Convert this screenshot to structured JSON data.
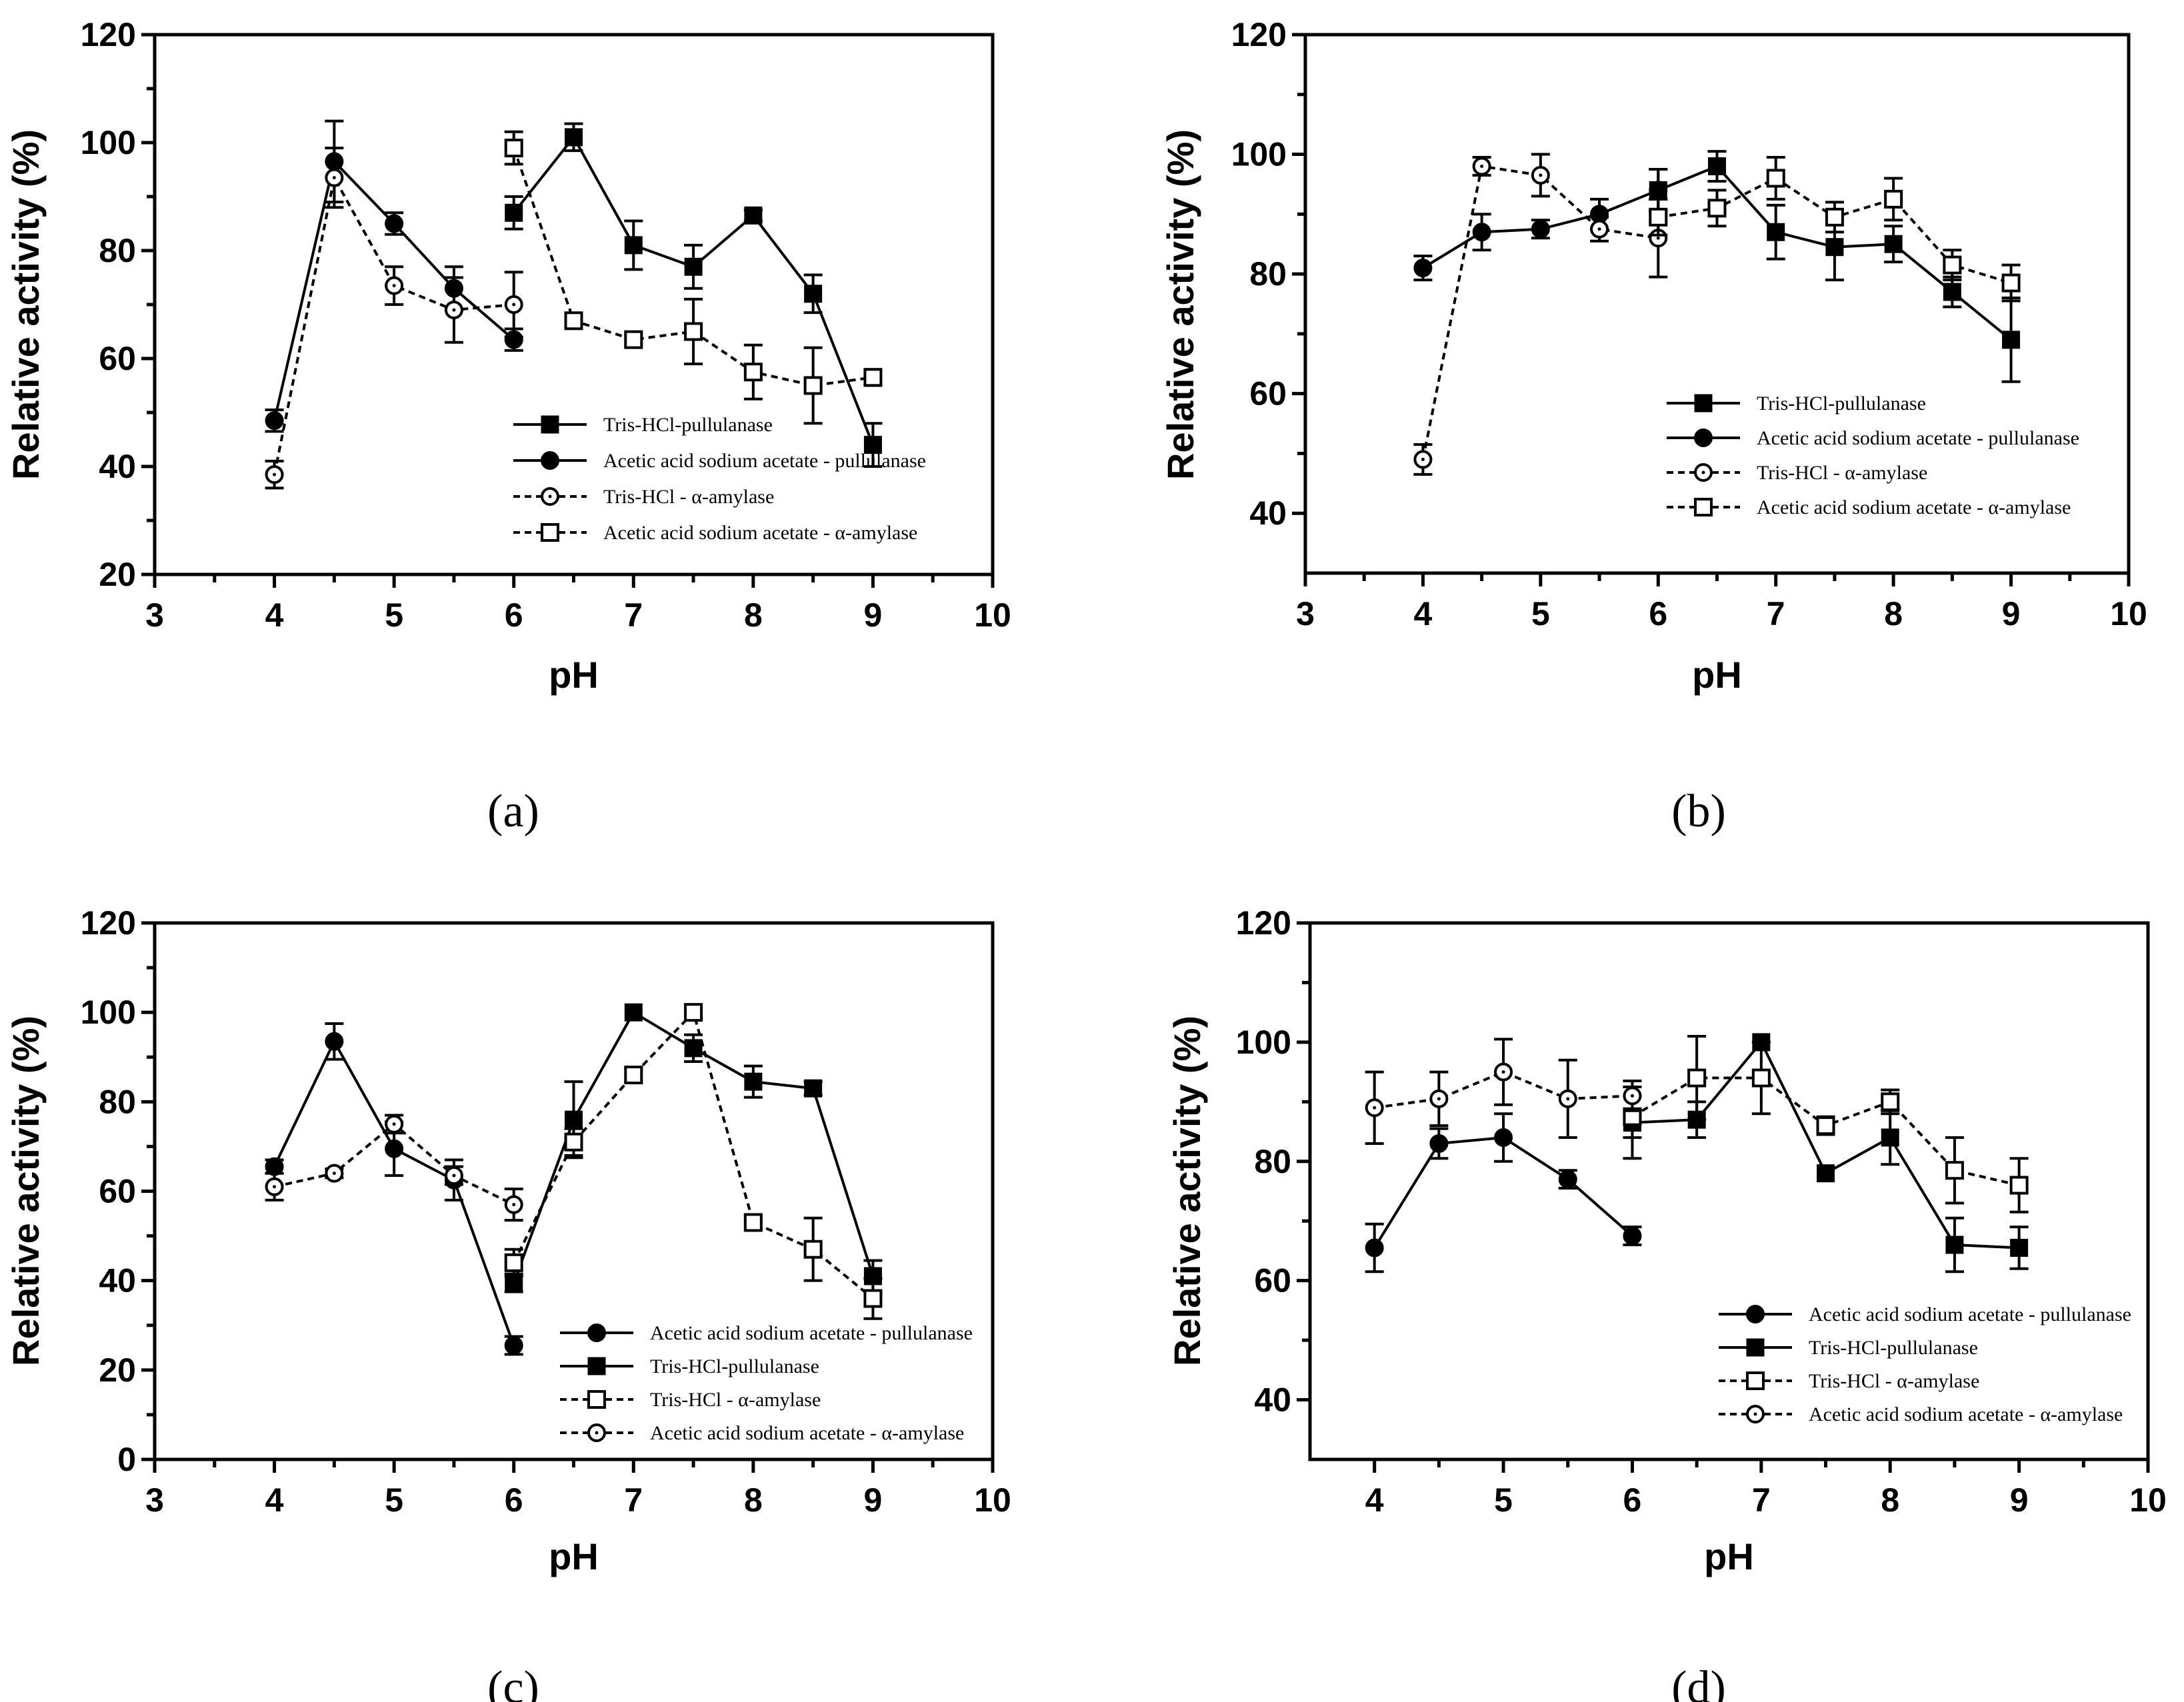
{
  "chart_data": [
    {
      "panel_label": "(a)",
      "type": "line",
      "xlabel": "pH",
      "ylabel": "Relative activity (%)",
      "xlim": [
        3,
        10
      ],
      "ylim": [
        20,
        120
      ],
      "xticks": [
        3,
        4,
        5,
        6,
        7,
        8,
        9,
        10
      ],
      "yticks": [
        20,
        40,
        60,
        80,
        100,
        120
      ],
      "legend_position": "bottom-right",
      "series": [
        {
          "name": "Tris-HCl-pullulanase",
          "marker": "square-filled",
          "dashed": false,
          "x": [
            6,
            6.5,
            7,
            7.5,
            8,
            8.5,
            9
          ],
          "y": [
            87,
            101,
            81,
            77,
            86.5,
            72,
            44
          ],
          "err": [
            3,
            2.5,
            4.5,
            4,
            1,
            3.5,
            4
          ]
        },
        {
          "name": "Acetic acid sodium acetate - pullulanase",
          "marker": "circle-filled",
          "dashed": false,
          "x": [
            4,
            4.5,
            5,
            5.5,
            6
          ],
          "y": [
            48.5,
            96.5,
            85,
            73,
            63.5
          ],
          "err": [
            2,
            7.5,
            2,
            4,
            2
          ]
        },
        {
          "name": "Tris-HCl - α-amylase",
          "marker": "circle-open",
          "dashed": true,
          "x": [
            4,
            4.5,
            5,
            5.5,
            6
          ],
          "y": [
            38.5,
            93.5,
            73.5,
            69,
            70
          ],
          "err": [
            2.5,
            5.5,
            3.5,
            6,
            6
          ]
        },
        {
          "name": "Acetic acid sodium acetate - α-amylase",
          "marker": "square-open",
          "dashed": true,
          "x": [
            6,
            6.5,
            7,
            7.5,
            8,
            8.5,
            9
          ],
          "y": [
            99,
            67,
            63.5,
            65,
            57.5,
            55,
            56.5
          ],
          "err": [
            3,
            1,
            1,
            6,
            5,
            7,
            1.5
          ]
        }
      ]
    },
    {
      "panel_label": "(b)",
      "type": "line",
      "xlabel": "pH",
      "ylabel": "Relative activity (%)",
      "xlim": [
        3,
        10
      ],
      "ylim": [
        30,
        120
      ],
      "xticks": [
        3,
        4,
        5,
        6,
        7,
        8,
        9,
        10
      ],
      "yticks": [
        40,
        60,
        80,
        100,
        120
      ],
      "legend_position": "bottom-right",
      "series": [
        {
          "name": "Tris-HCl-pullulanase",
          "marker": "square-filled",
          "dashed": false,
          "x": [
            6,
            6.5,
            7,
            7.5,
            8,
            8.5,
            9
          ],
          "y": [
            94,
            98,
            87,
            84.5,
            85,
            77,
            69
          ],
          "err": [
            3.5,
            2.5,
            4.5,
            5.5,
            3,
            2.5,
            7
          ]
        },
        {
          "name": "Acetic acid sodium acetate - pullulanase",
          "marker": "circle-filled",
          "dashed": false,
          "x": [
            4,
            4.5,
            5,
            5.5,
            6
          ],
          "y": [
            81,
            87,
            87.5,
            90,
            94
          ],
          "err": [
            2,
            3,
            1.5,
            2.5,
            3.5
          ]
        },
        {
          "name": "Tris-HCl - α-amylase",
          "marker": "circle-open",
          "dashed": true,
          "x": [
            4,
            4.5,
            5,
            5.5,
            6
          ],
          "y": [
            49,
            98,
            96.5,
            87.5,
            86
          ],
          "err": [
            2.5,
            1.5,
            3.5,
            2,
            6.5
          ]
        },
        {
          "name": "Acetic acid sodium acetate - α-amylase",
          "marker": "square-open",
          "dashed": true,
          "x": [
            6,
            6.5,
            7,
            7.5,
            8,
            8.5,
            9
          ],
          "y": [
            89.5,
            91,
            96,
            89.5,
            92.5,
            81.5,
            78.5
          ],
          "err": [
            3,
            3,
            3.5,
            2.5,
            3.5,
            2.5,
            3
          ]
        }
      ]
    },
    {
      "panel_label": "(c)",
      "type": "line",
      "xlabel": "pH",
      "ylabel": "Relative activity (%)",
      "xlim": [
        3,
        10
      ],
      "ylim": [
        0,
        120
      ],
      "xticks": [
        3,
        4,
        5,
        6,
        7,
        8,
        9,
        10
      ],
      "yticks": [
        0,
        20,
        40,
        60,
        80,
        100,
        120
      ],
      "legend_position": "bottom-right",
      "series": [
        {
          "name": "Acetic acid sodium acetate - pullulanase",
          "marker": "circle-filled",
          "dashed": false,
          "x": [
            4,
            4.5,
            5,
            5.5,
            6
          ],
          "y": [
            65.5,
            93.5,
            69.5,
            62.5,
            25.5
          ],
          "err": [
            1.5,
            4,
            6,
            4.5,
            2
          ]
        },
        {
          "name": "Tris-HCl-pullulanase",
          "marker": "square-filled",
          "dashed": false,
          "x": [
            6,
            6.5,
            7,
            7.5,
            8,
            8.5,
            9
          ],
          "y": [
            39.5,
            76,
            100,
            92,
            84.5,
            83,
            41
          ],
          "err": [
            2,
            8.5,
            0.5,
            3,
            3.5,
            1.5,
            3.5
          ]
        },
        {
          "name": "Tris-HCl - α-amylase",
          "marker": "square-open",
          "dashed": true,
          "x": [
            6,
            6.5,
            7,
            7.5,
            8,
            8.5,
            9
          ],
          "y": [
            44,
            71,
            86,
            100,
            53,
            47,
            36
          ],
          "err": [
            3,
            3,
            1.5,
            1,
            1.5,
            7,
            4.5
          ]
        },
        {
          "name": "Acetic acid sodium acetate - α-amylase",
          "marker": "circle-open",
          "dashed": true,
          "x": [
            4,
            4.5,
            5,
            5.5,
            6
          ],
          "y": [
            61,
            64,
            75,
            63.5,
            57
          ],
          "err": [
            3,
            1,
            2,
            2,
            3.5
          ]
        }
      ]
    },
    {
      "panel_label": "(d)",
      "type": "line",
      "xlabel": "pH",
      "ylabel": "Relative activity (%)",
      "xlim": [
        3.5,
        10
      ],
      "ylim": [
        30,
        120
      ],
      "xticks": [
        4,
        5,
        6,
        7,
        8,
        9,
        10
      ],
      "yticks": [
        40,
        60,
        80,
        100,
        120
      ],
      "legend_position": "bottom-right",
      "series": [
        {
          "name": "Acetic acid sodium acetate - pullulanase",
          "marker": "circle-filled",
          "dashed": false,
          "x": [
            4,
            4.5,
            5,
            5.5,
            6
          ],
          "y": [
            65.5,
            83,
            84,
            77,
            67.5
          ],
          "err": [
            4,
            2.5,
            4,
            1.5,
            1.5
          ]
        },
        {
          "name": "Tris-HCl-pullulanase",
          "marker": "square-filled",
          "dashed": false,
          "x": [
            6,
            6.5,
            7,
            7.5,
            8,
            8.5,
            9
          ],
          "y": [
            86.5,
            87,
            100,
            78,
            84,
            66,
            65.5
          ],
          "err": [
            6,
            3,
            0.5,
            0.5,
            4.5,
            4.5,
            3.5
          ]
        },
        {
          "name": "Tris-HCl - α-amylase",
          "marker": "square-open",
          "dashed": true,
          "x": [
            6,
            6.5,
            7,
            7.5,
            8,
            8.5,
            9
          ],
          "y": [
            87.5,
            94,
            94,
            86,
            90,
            78.5,
            76
          ],
          "err": [
            3.5,
            7,
            6,
            1.5,
            2,
            5.5,
            4.5
          ]
        },
        {
          "name": "Acetic acid sodium acetate - α-amylase",
          "marker": "circle-open",
          "dashed": true,
          "x": [
            4,
            4.5,
            5,
            5.5,
            6
          ],
          "y": [
            89,
            90.5,
            95,
            90.5,
            91
          ],
          "err": [
            6,
            4.5,
            5.5,
            6.5,
            2.5
          ]
        }
      ]
    }
  ]
}
